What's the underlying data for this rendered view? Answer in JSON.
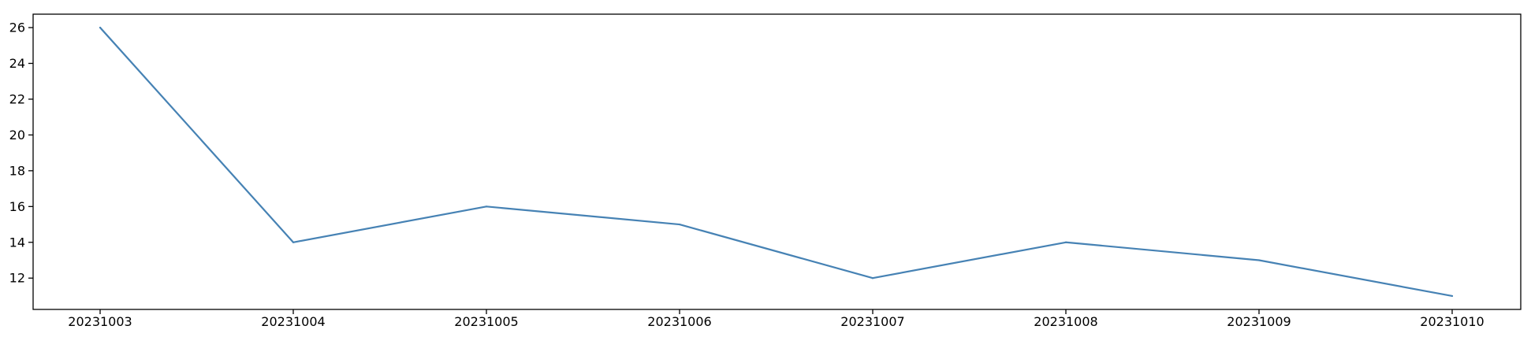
{
  "chart_data": {
    "type": "line",
    "title": "",
    "xlabel": "",
    "ylabel": "",
    "categories": [
      "20231003",
      "20231004",
      "20231005",
      "20231006",
      "20231007",
      "20231008",
      "20231009",
      "20231010"
    ],
    "series": [
      {
        "values": [
          26,
          14,
          16,
          15,
          12,
          14,
          13,
          11
        ]
      }
    ],
    "y_ticks": [
      12,
      14,
      16,
      18,
      20,
      22,
      24,
      26
    ],
    "ylim": [
      10.25,
      26.75
    ],
    "grid": false,
    "legend": "none",
    "colors": {
      "line": "#4682b4",
      "axes": "#000000",
      "background": "#ffffff"
    }
  }
}
